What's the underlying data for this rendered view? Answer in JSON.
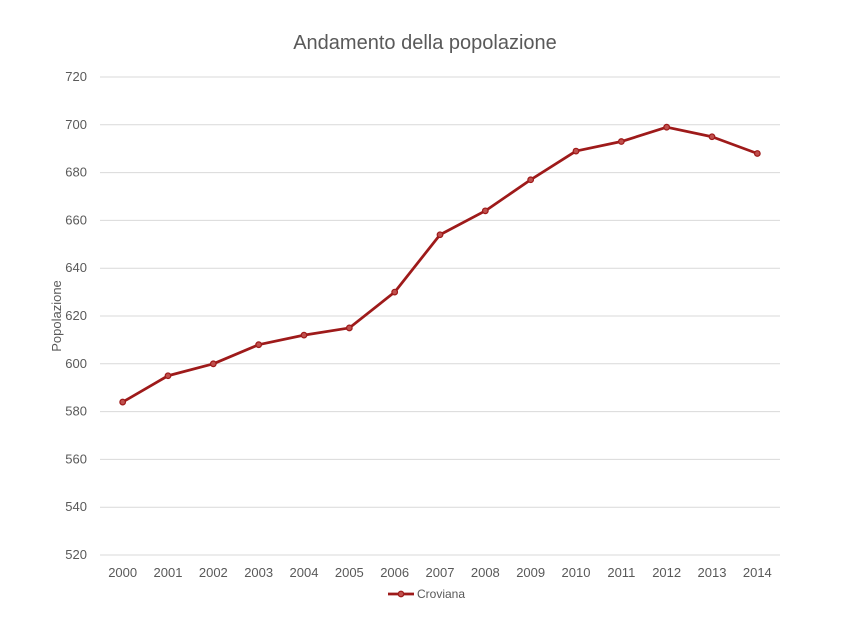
{
  "chart_data": {
    "type": "line",
    "title": "Andamento della popolazione",
    "xlabel": "",
    "ylabel": "Popolazione",
    "categories": [
      "2000",
      "2001",
      "2002",
      "2003",
      "2004",
      "2005",
      "2006",
      "2007",
      "2008",
      "2009",
      "2010",
      "2011",
      "2012",
      "2013",
      "2014"
    ],
    "series": [
      {
        "name": "Croviana",
        "values": [
          584,
          595,
          600,
          608,
          612,
          615,
          630,
          654,
          664,
          677,
          689,
          693,
          699,
          695,
          688
        ],
        "color": "#9e1a1a"
      }
    ],
    "ylim": [
      520,
      720
    ],
    "yticks": [
      "520",
      "540",
      "560",
      "580",
      "600",
      "620",
      "640",
      "660",
      "680",
      "700",
      "720"
    ],
    "grid": true,
    "legend": "bottom"
  }
}
